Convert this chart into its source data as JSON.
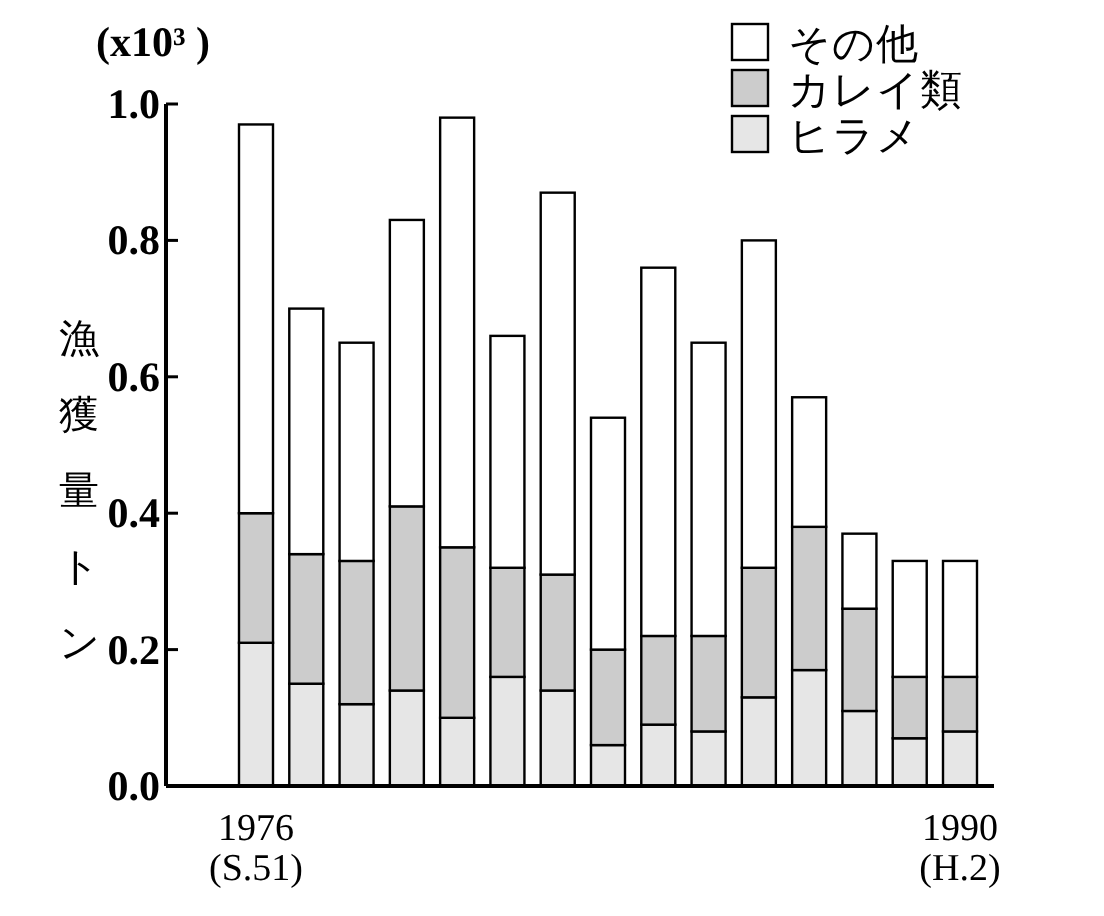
{
  "chart_data": {
    "type": "bar",
    "stacked": true,
    "categories": [
      "1976\n(S.51)",
      null,
      null,
      null,
      null,
      null,
      null,
      null,
      null,
      null,
      null,
      null,
      null,
      null,
      "1990\n(H.2)"
    ],
    "series": [
      {
        "name": "ヒラメ",
        "color": "#e6e6e6",
        "values": [
          0.21,
          0.15,
          0.12,
          0.14,
          0.1,
          0.16,
          0.14,
          0.06,
          0.09,
          0.08,
          0.13,
          0.17,
          0.11,
          0.07,
          0.08
        ]
      },
      {
        "name": "カレイ類",
        "color": "#cccccc",
        "values": [
          0.19,
          0.19,
          0.21,
          0.27,
          0.25,
          0.16,
          0.17,
          0.14,
          0.13,
          0.14,
          0.19,
          0.21,
          0.15,
          0.09,
          0.08
        ]
      },
      {
        "name": "その他",
        "color": "#ffffff",
        "values": [
          0.57,
          0.36,
          0.32,
          0.42,
          0.63,
          0.34,
          0.56,
          0.34,
          0.54,
          0.43,
          0.48,
          0.19,
          0.11,
          0.17,
          0.17
        ]
      }
    ],
    "ylabel": "漁獲量トン",
    "annotations": [
      "(x10³ )"
    ],
    "ylim": [
      0,
      1.0
    ],
    "yticks": [
      {
        "value": 0,
        "label": "0.0"
      },
      {
        "value": 0.2,
        "label": "0.2"
      },
      {
        "value": 0.4,
        "label": "0.4"
      },
      {
        "value": 0.6,
        "label": "0.6"
      },
      {
        "value": 0.8,
        "label": "0.8"
      },
      {
        "value": 1.0,
        "label": "1.0"
      }
    ],
    "legend": "top right",
    "grid": false
  }
}
